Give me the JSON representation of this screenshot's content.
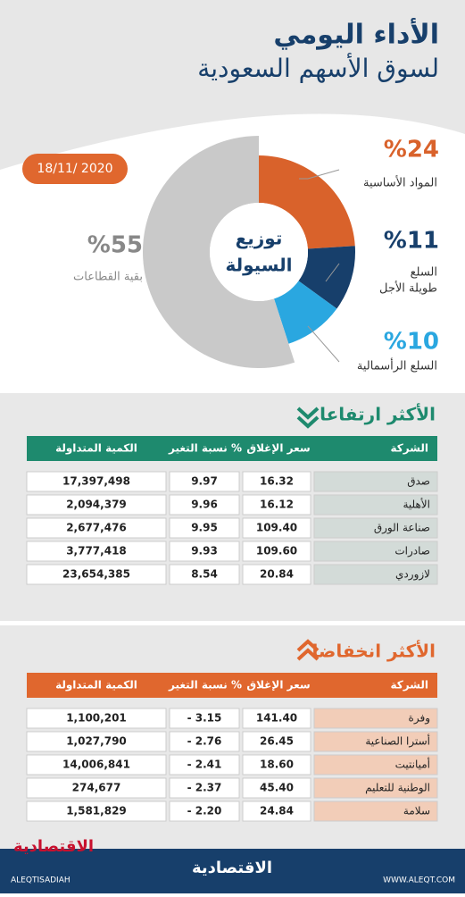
{
  "header": {
    "title": "الأداء اليومي",
    "subtitle": "لسوق الأسهم السعودية",
    "date": "18/11/ 2020"
  },
  "chart_data": {
    "type": "pie",
    "center_label": [
      "توزيع",
      "السيولة"
    ],
    "categories": [
      "المواد الأساسية",
      [
        "السلع",
        "طويلة الأجل"
      ],
      "السلع الرأسمالية",
      "بقية القطاعات"
    ],
    "values": [
      24,
      11,
      10,
      55
    ],
    "value_labels": [
      "%24",
      "%11",
      "%10",
      "%55"
    ],
    "colors": [
      "#d9622b",
      "#173f6b",
      "#2aa7e0",
      "#c9c9c9"
    ]
  },
  "rising": {
    "title": "الأكثر ارتفاعا",
    "color": "#1e8a6e",
    "columns": [
      "الشركة",
      "سعر الإغلاق",
      "نسبة التغير %",
      "الكمية المتداولة"
    ],
    "rows": [
      [
        "صدق",
        "16.32",
        "9.97",
        "17,397,498"
      ],
      [
        "الأهلية",
        "16.12",
        "9.96",
        "2,094,379"
      ],
      [
        "صناعة الورق",
        "109.40",
        "9.95",
        "2,677,476"
      ],
      [
        "صادرات",
        "109.60",
        "9.93",
        "3,777,418"
      ],
      [
        "لازوردي",
        "20.84",
        "8.54",
        "23,654,385"
      ]
    ]
  },
  "falling": {
    "title": "الأكثر انخفاضا",
    "color": "#e0672e",
    "columns": [
      "الشركة",
      "سعر الإغلاق",
      "نسبة التغير %",
      "الكمية المتداولة"
    ],
    "rows": [
      [
        "وفرة",
        "141.40",
        "- 3.15",
        "1,100,201"
      ],
      [
        "أسترا الصناعية",
        "26.45",
        "- 2.76",
        "1,027,790"
      ],
      [
        "أميانتيت",
        "18.60",
        "- 2.41",
        "14,006,841"
      ],
      [
        "الوطنية للتعليم",
        "45.40",
        "- 2.37",
        "274,677"
      ],
      [
        "سلامة",
        "24.84",
        "- 2.20",
        "1,581,829"
      ]
    ]
  },
  "footer": {
    "logo": "الاقتصادية",
    "social": "ALEQTISADIAH",
    "site": "WWW.ALEQT.COM"
  }
}
